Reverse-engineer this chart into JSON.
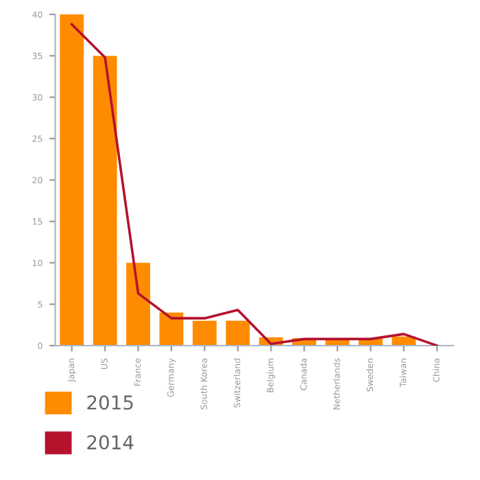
{
  "chart_data": {
    "type": "bar",
    "categories": [
      "Japan",
      "US",
      "France",
      "Germany",
      "South Korea",
      "Switzerland",
      "Belgium",
      "Canada",
      "Netherlands",
      "Sweden",
      "Taiwan",
      "China"
    ],
    "series": [
      {
        "name": "2015",
        "color": "#ff8c00",
        "values": [
          40,
          35,
          10,
          4,
          3,
          3,
          1,
          0.9,
          0.9,
          0.9,
          1.1,
          0
        ]
      },
      {
        "name": "2014",
        "type": "line",
        "color": "#b5122e",
        "values": [
          38.8,
          34.8,
          6.3,
          3.3,
          3.3,
          4.3,
          0.2,
          0.8,
          0.8,
          0.8,
          1.4,
          0
        ]
      }
    ],
    "ylim": [
      0,
      40
    ],
    "yticks": [
      0,
      5,
      10,
      15,
      20,
      25,
      30,
      35,
      40
    ],
    "grid": false,
    "legend": "bottom left"
  }
}
